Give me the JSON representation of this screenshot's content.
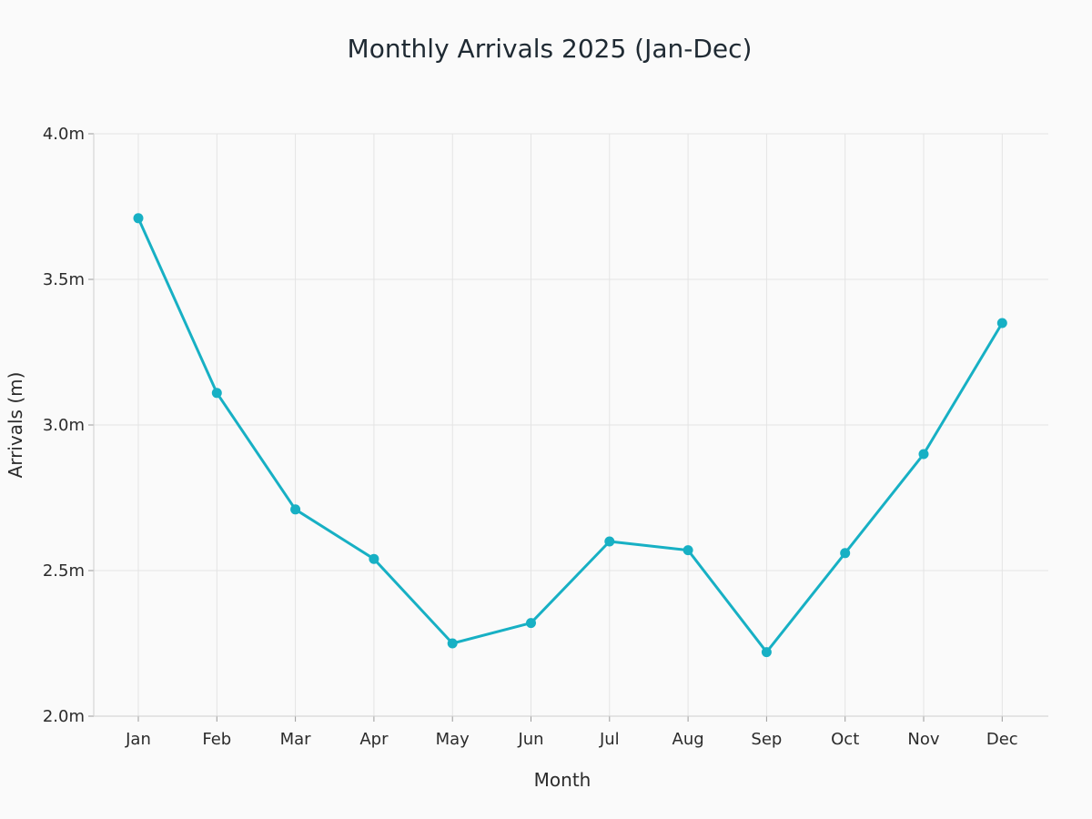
{
  "chart_data": {
    "type": "line",
    "title": "Monthly Arrivals 2025 (Jan-Dec)",
    "xlabel": "Month",
    "ylabel": "Arrivals (m)",
    "categories": [
      "Jan",
      "Feb",
      "Mar",
      "Apr",
      "May",
      "Jun",
      "Jul",
      "Aug",
      "Sep",
      "Oct",
      "Nov",
      "Dec"
    ],
    "series": [
      {
        "values": [
          3.71,
          3.11,
          2.71,
          2.54,
          2.25,
          2.32,
          2.6,
          2.57,
          2.22,
          2.56,
          2.9,
          3.35
        ],
        "color": "#17b0c4"
      }
    ],
    "ylim": [
      2.0,
      4.0
    ],
    "yticks": [
      2.0,
      2.5,
      3.0,
      3.5,
      4.0
    ],
    "ytick_labels": [
      "2.0m",
      "2.5m",
      "3.0m",
      "3.5m",
      "4.0m"
    ],
    "grid": true,
    "legend": "none"
  }
}
